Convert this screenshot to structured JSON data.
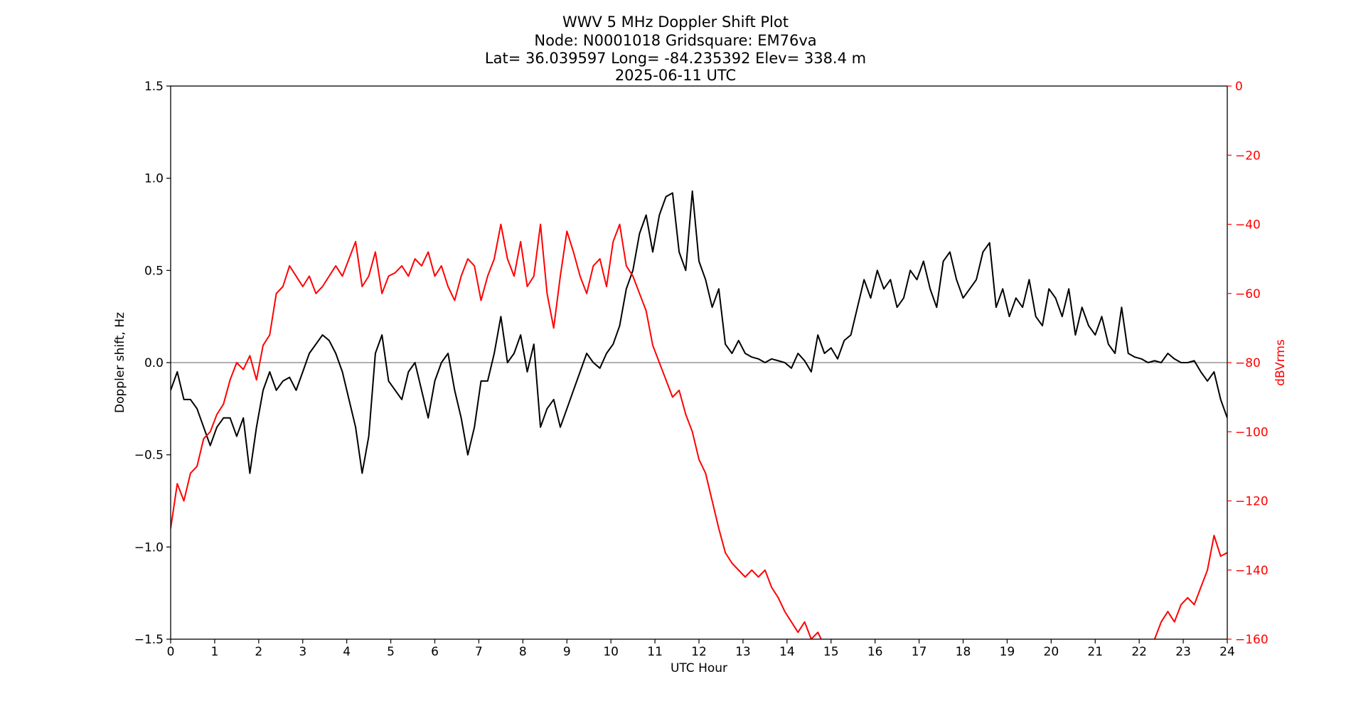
{
  "title_lines": [
    "WWV 5 MHz Doppler Shift Plot",
    "Node:  N0001018     Gridsquare:  EM76va",
    "Lat= 36.039597    Long= -84.235392    Elev= 338.4 m",
    "2025-06-11  UTC"
  ],
  "chart_data": {
    "type": "line",
    "xlabel": "UTC Hour",
    "ylabel": "Doppler shift, Hz",
    "y2label": "dBVrms",
    "xlim": [
      0,
      24
    ],
    "ylim": [
      -1.5,
      1.5
    ],
    "y2lim": [
      -160,
      0
    ],
    "x_ticks": [
      0,
      1,
      2,
      3,
      4,
      5,
      6,
      7,
      8,
      9,
      10,
      11,
      12,
      13,
      14,
      15,
      16,
      17,
      18,
      19,
      20,
      21,
      22,
      23,
      24
    ],
    "y_ticks": [
      "1.5",
      "1.0",
      "0.5",
      "0.0",
      "−0.5",
      "−1.0",
      "−1.5"
    ],
    "y_tick_values": [
      1.5,
      1.0,
      0.5,
      0.0,
      -0.5,
      -1.0,
      -1.5
    ],
    "y2_ticks": [
      "0",
      "−20",
      "−40",
      "−60",
      "−80",
      "−100",
      "−120",
      "−140",
      "−160"
    ],
    "y2_tick_values": [
      0,
      -20,
      -40,
      -60,
      -80,
      -100,
      -120,
      -140,
      -160
    ],
    "zero_line": 0.0,
    "colors": {
      "doppler": "#000000",
      "power": "#ff0000",
      "zero_line": "#808080",
      "axes": "#000000"
    },
    "series": [
      {
        "axis": "left",
        "color": "#000000",
        "x": [
          0,
          0.15,
          0.3,
          0.45,
          0.6,
          0.75,
          0.9,
          1.05,
          1.2,
          1.35,
          1.5,
          1.65,
          1.8,
          1.95,
          2.1,
          2.25,
          2.4,
          2.55,
          2.7,
          2.85,
          3.0,
          3.15,
          3.3,
          3.45,
          3.6,
          3.75,
          3.9,
          4.05,
          4.2,
          4.35,
          4.5,
          4.65,
          4.8,
          4.95,
          5.1,
          5.25,
          5.4,
          5.55,
          5.7,
          5.85,
          6.0,
          6.15,
          6.3,
          6.45,
          6.6,
          6.75,
          6.9,
          7.05,
          7.2,
          7.35,
          7.5,
          7.65,
          7.8,
          7.95,
          8.1,
          8.25,
          8.4,
          8.55,
          8.7,
          8.85,
          9.0,
          9.15,
          9.3,
          9.45,
          9.6,
          9.75,
          9.9,
          10.05,
          10.2,
          10.35,
          10.5,
          10.65,
          10.8,
          10.95,
          11.1,
          11.25,
          11.4,
          11.55,
          11.7,
          11.85,
          12.0,
          12.15,
          12.3,
          12.45,
          12.6,
          12.75,
          12.9,
          13.05,
          13.2,
          13.35,
          13.5,
          13.65,
          13.8,
          13.95,
          14.1,
          14.25,
          14.4,
          14.55,
          14.7,
          14.85,
          15.0,
          15.15,
          15.3,
          15.45,
          15.6,
          15.75,
          15.9,
          16.05,
          16.2,
          16.35,
          16.5,
          16.65,
          16.8,
          16.95,
          17.1,
          17.25,
          17.4,
          17.55,
          17.7,
          17.85,
          18.0,
          18.15,
          18.3,
          18.45,
          18.6,
          18.75,
          18.9,
          19.05,
          19.2,
          19.35,
          19.5,
          19.65,
          19.8,
          19.95,
          20.1,
          20.25,
          20.4,
          20.55,
          20.7,
          20.85,
          21.0,
          21.15,
          21.3,
          21.45,
          21.6,
          21.75,
          21.9,
          22.05,
          22.2,
          22.35,
          22.5,
          22.65,
          22.8,
          22.95,
          23.1,
          23.25,
          23.4,
          23.55,
          23.7,
          23.85,
          24.0
        ],
        "values": [
          -0.15,
          -0.05,
          -0.2,
          -0.2,
          -0.25,
          -0.35,
          -0.45,
          -0.35,
          -0.3,
          -0.3,
          -0.4,
          -0.3,
          -0.6,
          -0.35,
          -0.15,
          -0.05,
          -0.15,
          -0.1,
          -0.08,
          -0.15,
          -0.05,
          0.05,
          0.1,
          0.15,
          0.12,
          0.05,
          -0.05,
          -0.2,
          -0.35,
          -0.6,
          -0.4,
          0.05,
          0.15,
          -0.1,
          -0.15,
          -0.2,
          -0.05,
          0.0,
          -0.15,
          -0.3,
          -0.1,
          0.0,
          0.05,
          -0.15,
          -0.3,
          -0.5,
          -0.35,
          -0.1,
          -0.1,
          0.05,
          0.25,
          0.0,
          0.05,
          0.15,
          -0.05,
          0.1,
          -0.35,
          -0.25,
          -0.2,
          -0.35,
          -0.25,
          -0.15,
          -0.05,
          0.05,
          0.0,
          -0.03,
          0.05,
          0.1,
          0.2,
          0.4,
          0.5,
          0.7,
          0.8,
          0.6,
          0.8,
          0.9,
          0.92,
          0.6,
          0.5,
          0.93,
          0.55,
          0.45,
          0.3,
          0.4,
          0.1,
          0.05,
          0.12,
          0.05,
          0.03,
          0.02,
          0.0,
          0.02,
          0.01,
          0.0,
          -0.03,
          0.05,
          0.01,
          -0.05,
          0.15,
          0.05,
          0.08,
          0.02,
          0.12,
          0.15,
          0.3,
          0.45,
          0.35,
          0.5,
          0.4,
          0.45,
          0.3,
          0.35,
          0.5,
          0.45,
          0.55,
          0.4,
          0.3,
          0.55,
          0.6,
          0.45,
          0.35,
          0.4,
          0.45,
          0.6,
          0.65,
          0.3,
          0.4,
          0.25,
          0.35,
          0.3,
          0.45,
          0.25,
          0.2,
          0.4,
          0.35,
          0.25,
          0.4,
          0.15,
          0.3,
          0.2,
          0.15,
          0.25,
          0.1,
          0.05,
          0.3,
          0.05,
          0.03,
          0.02,
          0.0,
          0.01,
          0.0,
          0.05,
          0.02,
          0.0,
          0.0,
          0.01,
          -0.05,
          -0.1,
          -0.05,
          -0.2,
          -0.3
        ]
      },
      {
        "axis": "right",
        "color": "#ff0000",
        "x": [
          0,
          0.15,
          0.3,
          0.45,
          0.6,
          0.75,
          0.9,
          1.05,
          1.2,
          1.35,
          1.5,
          1.65,
          1.8,
          1.95,
          2.1,
          2.25,
          2.4,
          2.55,
          2.7,
          2.85,
          3.0,
          3.15,
          3.3,
          3.45,
          3.6,
          3.75,
          3.9,
          4.05,
          4.2,
          4.35,
          4.5,
          4.65,
          4.8,
          4.95,
          5.1,
          5.25,
          5.4,
          5.55,
          5.7,
          5.85,
          6.0,
          6.15,
          6.3,
          6.45,
          6.6,
          6.75,
          6.9,
          7.05,
          7.2,
          7.35,
          7.5,
          7.65,
          7.8,
          7.95,
          8.1,
          8.25,
          8.4,
          8.55,
          8.7,
          8.85,
          9.0,
          9.15,
          9.3,
          9.45,
          9.6,
          9.75,
          9.9,
          10.05,
          10.2,
          10.35,
          10.5,
          10.65,
          10.8,
          10.95,
          11.1,
          11.25,
          11.4,
          11.55,
          11.7,
          11.85,
          12.0,
          12.15,
          12.3,
          12.45,
          12.6,
          12.75,
          12.9,
          13.05,
          13.2,
          13.35,
          13.5,
          13.65,
          13.8,
          13.95,
          14.1,
          14.25,
          14.4,
          14.55,
          14.7,
          14.85,
          22.35,
          22.5,
          22.65,
          22.8,
          22.95,
          23.1,
          23.25,
          23.4,
          23.55,
          23.7,
          23.85,
          24.0
        ],
        "values": [
          -128,
          -115,
          -120,
          -112,
          -110,
          -102,
          -100,
          -95,
          -92,
          -85,
          -80,
          -82,
          -78,
          -85,
          -75,
          -72,
          -60,
          -58,
          -52,
          -55,
          -58,
          -55,
          -60,
          -58,
          -55,
          -52,
          -55,
          -50,
          -45,
          -58,
          -55,
          -48,
          -60,
          -55,
          -54,
          -52,
          -55,
          -50,
          -52,
          -48,
          -55,
          -52,
          -58,
          -62,
          -55,
          -50,
          -52,
          -62,
          -55,
          -50,
          -40,
          -50,
          -55,
          -45,
          -58,
          -55,
          -40,
          -60,
          -70,
          -55,
          -42,
          -48,
          -55,
          -60,
          -52,
          -50,
          -58,
          -45,
          -40,
          -52,
          -55,
          -60,
          -65,
          -75,
          -80,
          -85,
          -90,
          -88,
          -95,
          -100,
          -108,
          -112,
          -120,
          -128,
          -135,
          -138,
          -140,
          -142,
          -140,
          -142,
          -140,
          -145,
          -148,
          -152,
          -155,
          -158,
          -155,
          -160,
          -158,
          -162,
          -160,
          -155,
          -152,
          -155,
          -150,
          -148,
          -150,
          -145,
          -140,
          -130,
          -136,
          -135
        ]
      }
    ]
  }
}
